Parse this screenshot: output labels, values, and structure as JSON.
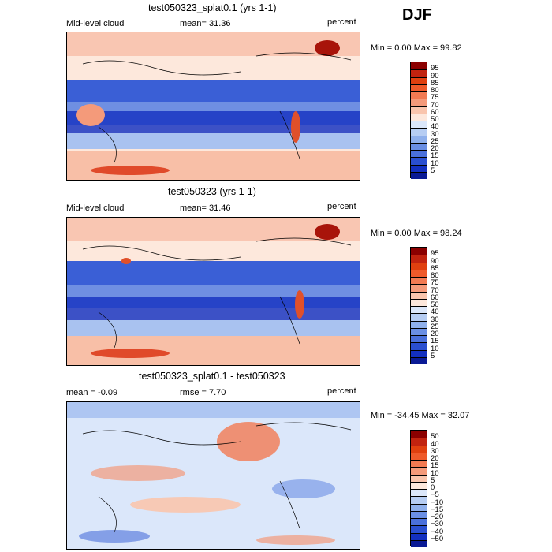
{
  "season_label": "DJF",
  "chart_data": [
    {
      "type": "heatmap",
      "title": "test050323_splat0.1 (yrs 1-1)",
      "variable": "Mid-level cloud",
      "stat_text": "mean=  31.36",
      "units": "percent",
      "range_text": "Min =    0.00 Max =   99.82",
      "colorbar_levels": [
        "95",
        "90",
        "85",
        "80",
        "75",
        "70",
        "60",
        "50",
        "40",
        "30",
        "25",
        "20",
        "15",
        "10",
        "5"
      ],
      "colorbar_colors": [
        "#8b0000",
        "#c1230f",
        "#e0400f",
        "#ef5a2a",
        "#f27a52",
        "#f49a7a",
        "#f9c5ad",
        "#fde8dc",
        "#dbe7fa",
        "#b6cdf3",
        "#8fb0ec",
        "#6a8fe4",
        "#4a70db",
        "#2a4fd0",
        "#1330c0",
        "#0a1a95"
      ]
    },
    {
      "type": "heatmap",
      "title": "test050323 (yrs 1-1)",
      "variable": "Mid-level cloud",
      "stat_text": "mean=  31.46",
      "units": "percent",
      "range_text": "Min =    0.00 Max =   98.24",
      "colorbar_levels": [
        "95",
        "90",
        "85",
        "80",
        "75",
        "70",
        "60",
        "50",
        "40",
        "30",
        "25",
        "20",
        "15",
        "10",
        "5"
      ],
      "colorbar_colors": [
        "#8b0000",
        "#c1230f",
        "#e0400f",
        "#ef5a2a",
        "#f27a52",
        "#f49a7a",
        "#f9c5ad",
        "#fde8dc",
        "#dbe7fa",
        "#b6cdf3",
        "#8fb0ec",
        "#6a8fe4",
        "#4a70db",
        "#2a4fd0",
        "#1330c0",
        "#0a1a95"
      ]
    },
    {
      "type": "heatmap",
      "title": "test050323_splat0.1 - test050323",
      "variable": "mean =   -0.09",
      "stat_text": "rmse =    7.70",
      "units": "percent",
      "range_text": "Min = -34.45 Max =   32.07",
      "colorbar_levels": [
        "50",
        "40",
        "30",
        "20",
        "15",
        "10",
        "5",
        "0",
        "−5",
        "−10",
        "−15",
        "−20",
        "−30",
        "−40",
        "−50"
      ],
      "colorbar_colors": [
        "#8b0000",
        "#c1230f",
        "#e0400f",
        "#ef5a2a",
        "#f27a52",
        "#f49a7a",
        "#f9c5ad",
        "#fde8dc",
        "#dbe7fa",
        "#b6cdf3",
        "#8fb0ec",
        "#6a8fe4",
        "#4a70db",
        "#2a4fd0",
        "#1330c0",
        "#0a1a95"
      ]
    }
  ]
}
